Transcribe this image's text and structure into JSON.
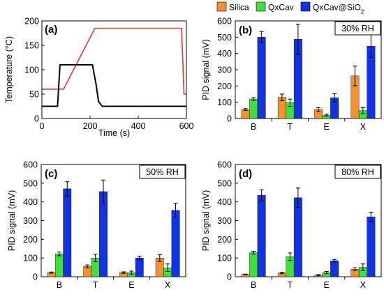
{
  "legend": {
    "items": [
      {
        "name": "Silica",
        "color": "#F5922C"
      },
      {
        "name": "QxCav",
        "color": "#3DE23D"
      },
      {
        "name": "QxCav@SiO",
        "sub": "2",
        "color": "#1232E6"
      }
    ],
    "placement": "top-right"
  },
  "chart_data": [
    {
      "panel": "(a)",
      "type": "line",
      "xlabel": "Time (s)",
      "ylabel": "Temperature (°C)",
      "xlim": [
        0,
        600
      ],
      "ylim": [
        0,
        200
      ],
      "xticks": [
        0,
        200,
        400,
        600
      ],
      "yticks": [
        0,
        50,
        100,
        150,
        200
      ],
      "series": [
        {
          "color": "#D93A2B",
          "x": [
            0,
            90,
            220,
            580,
            590,
            600
          ],
          "y": [
            60,
            60,
            185,
            185,
            50,
            50
          ]
        },
        {
          "color": "#000000",
          "x": [
            0,
            65,
            75,
            210,
            225,
            235,
            250,
            600
          ],
          "y": [
            25,
            25,
            110,
            110,
            70,
            35,
            25,
            25
          ]
        }
      ]
    },
    {
      "panel": "(b)",
      "condition": "30% RH",
      "type": "bar",
      "ylabel": "PID signal (mV)",
      "ylim": [
        0,
        600
      ],
      "yticks": [
        0,
        100,
        200,
        300,
        400,
        500,
        600
      ],
      "categories": [
        "B",
        "T",
        "E",
        "X"
      ],
      "series": [
        {
          "values": [
            55,
            130,
            55,
            262
          ],
          "errors": [
            6,
            20,
            12,
            60
          ]
        },
        {
          "values": [
            120,
            97,
            20,
            48
          ],
          "errors": [
            8,
            22,
            6,
            18
          ]
        },
        {
          "values": [
            500,
            487,
            127,
            445
          ],
          "errors": [
            35,
            92,
            25,
            70
          ]
        }
      ]
    },
    {
      "panel": "(c)",
      "condition": "50% RH",
      "type": "bar",
      "ylabel": "PID signal (mV)",
      "ylim": [
        0,
        600
      ],
      "yticks": [
        0,
        100,
        200,
        300,
        400,
        500,
        600
      ],
      "categories": [
        "B",
        "T",
        "E",
        "X"
      ],
      "series": [
        {
          "values": [
            22,
            55,
            22,
            100
          ],
          "errors": [
            3,
            8,
            4,
            18
          ]
        },
        {
          "values": [
            122,
            100,
            22,
            48
          ],
          "errors": [
            10,
            20,
            8,
            20
          ]
        },
        {
          "values": [
            470,
            455,
            100,
            355
          ],
          "errors": [
            38,
            62,
            10,
            37
          ]
        }
      ]
    },
    {
      "panel": "(d)",
      "condition": "80% RH",
      "type": "bar",
      "ylabel": "PID signal (mV)",
      "ylim": [
        0,
        600
      ],
      "yticks": [
        0,
        100,
        200,
        300,
        400,
        500,
        600
      ],
      "categories": [
        "B",
        "T",
        "E",
        "X"
      ],
      "series": [
        {
          "values": [
            12,
            20,
            8,
            40
          ],
          "errors": [
            2,
            4,
            3,
            8
          ]
        },
        {
          "values": [
            128,
            107,
            22,
            50
          ],
          "errors": [
            8,
            20,
            6,
            18
          ]
        },
        {
          "values": [
            435,
            422,
            85,
            320
          ],
          "errors": [
            30,
            52,
            6,
            25
          ]
        }
      ]
    }
  ]
}
